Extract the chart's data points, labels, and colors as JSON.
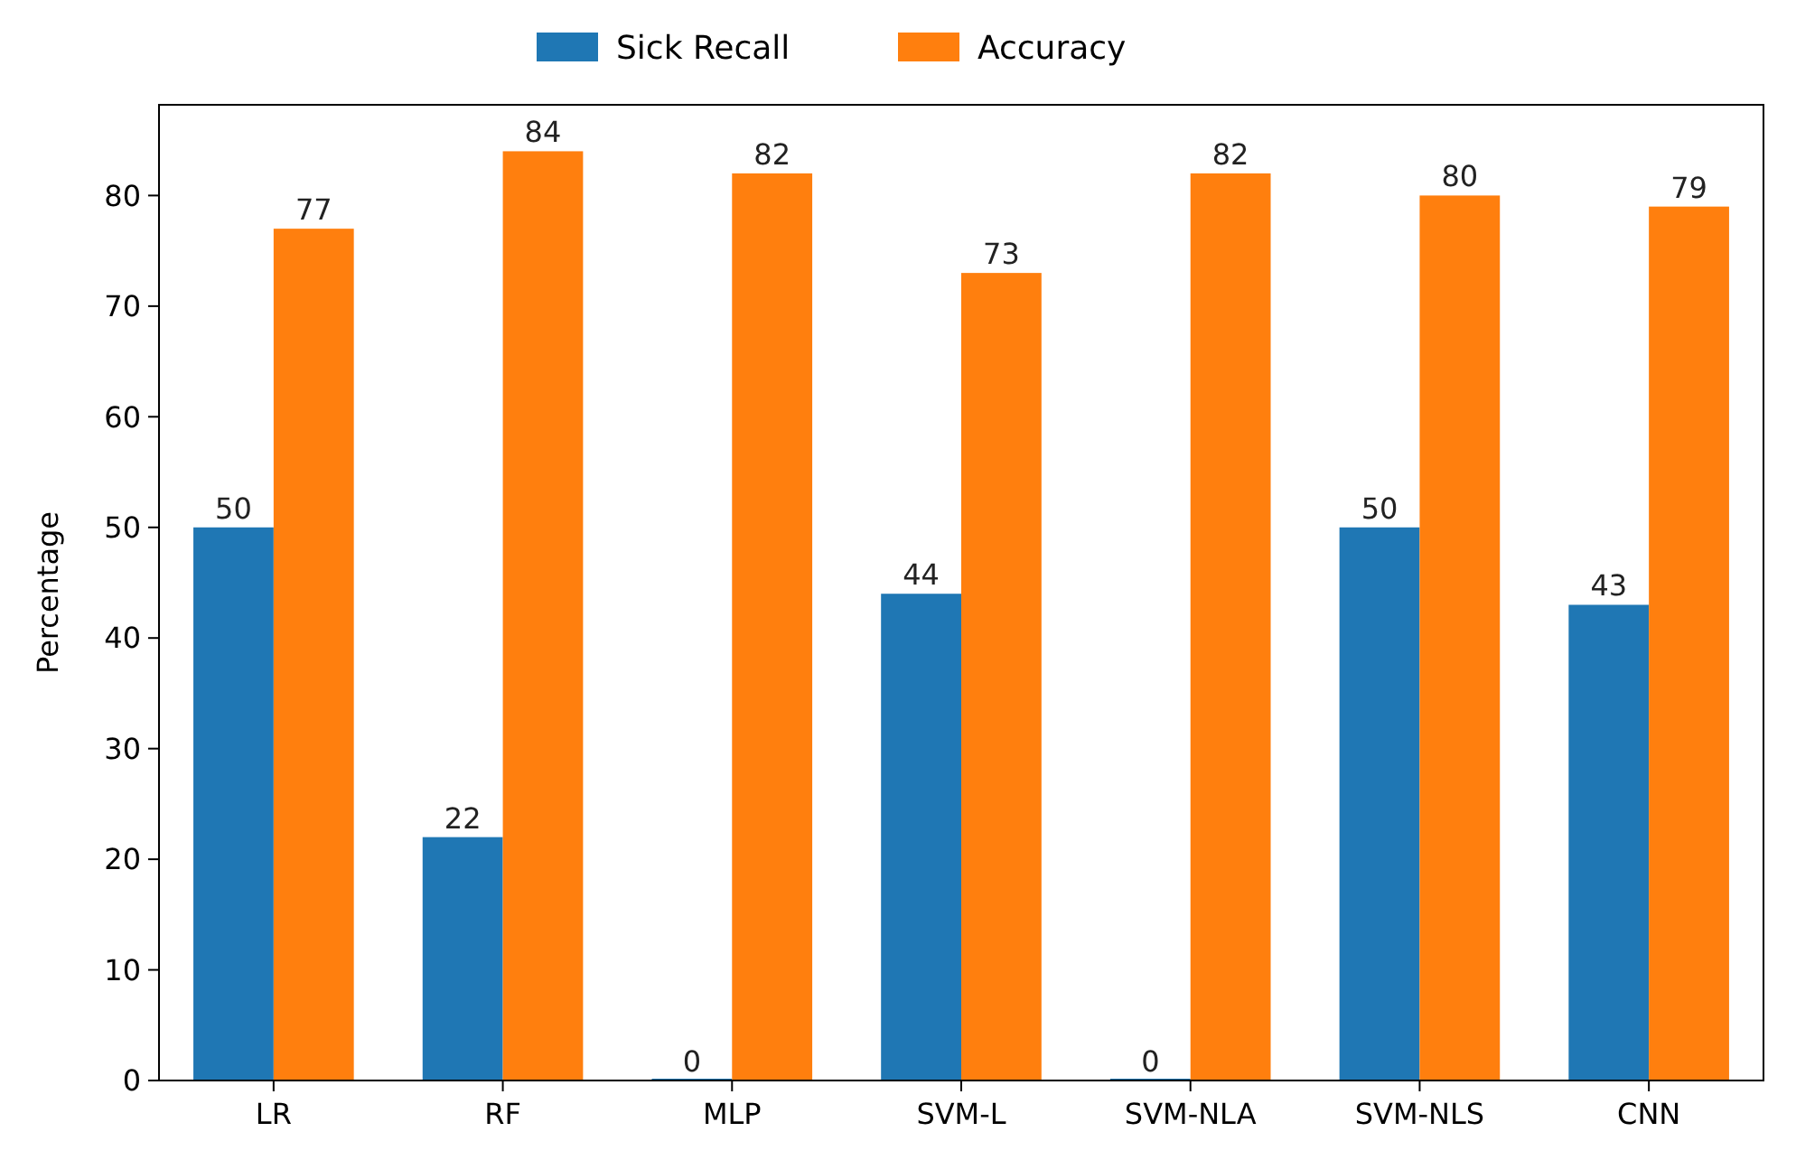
{
  "chart_data": {
    "type": "bar",
    "ylabel": "Percentage",
    "categories": [
      "LR",
      "RF",
      "MLP",
      "SVM-L",
      "SVM-NLA",
      "SVM-NLS",
      "CNN"
    ],
    "series": [
      {
        "name": "Sick Recall",
        "color": "#1f77b4",
        "values": [
          50,
          22,
          0,
          44,
          0,
          50,
          43
        ]
      },
      {
        "name": "Accuracy",
        "color": "#ff7f0e",
        "values": [
          77,
          84,
          82,
          73,
          82,
          80,
          79
        ]
      }
    ],
    "ylim": [
      0,
      88.2
    ],
    "yticks": [
      0,
      10,
      20,
      30,
      40,
      50,
      60,
      70,
      80
    ],
    "data_labels": true,
    "legend": "top",
    "grid": false
  }
}
